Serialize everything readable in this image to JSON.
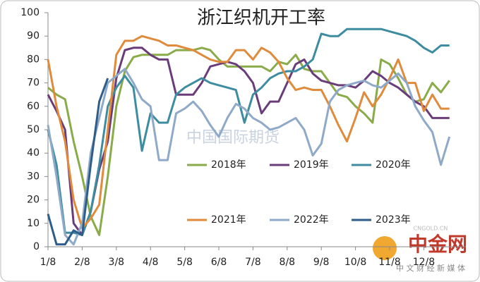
{
  "chart_data": {
    "type": "line",
    "title": "浙江织机开工率",
    "categories": [
      "1/8",
      null,
      null,
      null,
      "2/8",
      null,
      null,
      null,
      "3/8",
      null,
      null,
      null,
      "4/8",
      null,
      null,
      null,
      "5/8",
      null,
      null,
      null,
      "6/8",
      null,
      null,
      null,
      "7/8",
      null,
      null,
      null,
      "8/8",
      null,
      null,
      null,
      "9/8",
      null,
      null,
      null,
      "10/8",
      null,
      null,
      null,
      "11/8",
      null,
      null,
      null,
      "12/8",
      null,
      null,
      null
    ],
    "series": [
      {
        "name": "2018年",
        "color": "#8aab4a",
        "values": [
          68,
          65,
          63,
          45,
          30,
          13,
          5,
          30,
          60,
          75,
          81,
          82,
          82,
          82,
          82,
          84,
          84,
          84,
          85,
          84,
          80,
          77,
          77,
          77,
          77,
          77,
          75,
          79,
          78,
          82,
          76,
          75,
          75,
          70,
          65,
          64,
          60,
          57,
          53,
          80,
          78,
          72,
          65,
          62,
          63,
          70,
          66,
          71
        ]
      },
      {
        "name": "2019年",
        "color": "#6a3d7a",
        "values": [
          65,
          58,
          50,
          10,
          5,
          15,
          33,
          45,
          72,
          84,
          85,
          85,
          82,
          80,
          80,
          65,
          65,
          65,
          70,
          77,
          78,
          79,
          78,
          75,
          70,
          57,
          62,
          62,
          70,
          78,
          80,
          74,
          71,
          70,
          69,
          69,
          68,
          71,
          75,
          73,
          70,
          68,
          65,
          62,
          60,
          55,
          55,
          55
        ]
      },
      {
        "name": "2020年",
        "color": "#3d8ca0",
        "values": [
          50,
          35,
          6,
          6,
          5,
          15,
          35,
          60,
          68,
          73,
          68,
          41,
          57,
          53,
          53,
          65,
          68,
          70,
          72,
          70,
          69,
          68,
          67,
          53,
          65,
          68,
          72,
          74,
          75,
          75,
          77,
          80,
          91,
          90,
          90,
          93,
          93,
          93,
          93,
          93,
          92,
          91,
          90,
          88,
          85,
          83,
          86,
          86
        ]
      },
      {
        "name": "2021年",
        "color": "#e08a3c",
        "values": [
          80,
          60,
          45,
          20,
          8,
          12,
          18,
          50,
          82,
          88,
          88,
          90,
          89,
          88,
          86,
          86,
          85,
          84,
          82,
          80,
          79,
          79,
          84,
          84,
          80,
          85,
          83,
          79,
          72,
          67,
          68,
          67,
          67,
          60,
          52,
          45,
          55,
          66,
          60,
          65,
          72,
          80,
          70,
          70,
          58,
          65,
          59,
          59
        ]
      },
      {
        "name": "2022年",
        "color": "#8fa9c9",
        "values": [
          52,
          30,
          5,
          1,
          10,
          40,
          55,
          70,
          73,
          76,
          70,
          63,
          60,
          37,
          37,
          57,
          59,
          62,
          58,
          52,
          47,
          55,
          61,
          59,
          55,
          53,
          50,
          51,
          53,
          55,
          50,
          39,
          44,
          62,
          67,
          69,
          70,
          71,
          69,
          68,
          71,
          74,
          70,
          60,
          54,
          49,
          35,
          47
        ]
      },
      {
        "name": "2023年",
        "color": "#2e5d8a",
        "values": [
          14,
          1,
          1,
          7,
          5,
          35,
          62,
          72,
          null,
          null,
          null,
          null,
          null,
          null,
          null,
          null,
          null,
          null,
          null,
          null,
          null,
          null,
          null,
          null,
          null,
          null,
          null,
          null,
          null,
          null,
          null,
          null,
          null,
          null,
          null,
          null,
          null,
          null,
          null,
          null,
          null,
          null,
          null,
          null,
          null,
          null,
          null,
          null
        ]
      }
    ],
    "ylim": [
      0,
      100
    ],
    "yticks": [
      0,
      10,
      20,
      30,
      40,
      50,
      60,
      70,
      80,
      90,
      100
    ],
    "watermarks": [
      "中国国际期货",
      "中金网",
      "CNGOLD.CN",
      "中 文 财 经 新 媒 体"
    ]
  }
}
